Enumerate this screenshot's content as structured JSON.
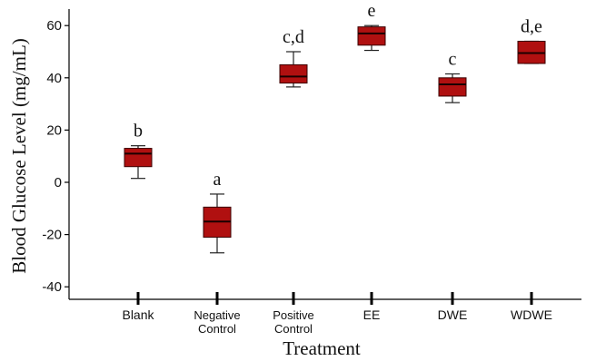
{
  "chart_data": {
    "type": "box",
    "title": "",
    "xlabel": "Treatment",
    "ylabel": "Blood Glucose Level (mg/mL)",
    "ylim": [
      -45,
      66
    ],
    "yticks": [
      -40,
      -20,
      0,
      20,
      40,
      60
    ],
    "grid": false,
    "legend": "none",
    "box_color": "#b01010",
    "box_edge_color": "#3a0000",
    "categories": [
      {
        "label": "Blank",
        "label_lines": [
          "Blank"
        ],
        "letter": "b",
        "min": 1.5,
        "q1": 6,
        "median": 11,
        "q3": 13,
        "max": 14
      },
      {
        "label": "Negative Control",
        "label_lines": [
          "Negative",
          "Control"
        ],
        "letter": "a",
        "min": -27,
        "q1": -21,
        "median": -15,
        "q3": -9.5,
        "max": -4.5
      },
      {
        "label": "Positive Control",
        "label_lines": [
          "Positive",
          "Control"
        ],
        "letter": "c,d",
        "min": 36.5,
        "q1": 38,
        "median": 40.5,
        "q3": 45,
        "max": 50
      },
      {
        "label": "EE",
        "label_lines": [
          "EE"
        ],
        "letter": "e",
        "min": 50.5,
        "q1": 52.5,
        "median": 57,
        "q3": 59.5,
        "max": 60
      },
      {
        "label": "DWE",
        "label_lines": [
          "DWE"
        ],
        "letter": "c",
        "min": 30.5,
        "q1": 33,
        "median": 37.5,
        "q3": 40,
        "max": 41.5
      },
      {
        "label": "WDWE",
        "label_lines": [
          "WDWE"
        ],
        "letter": "d,e",
        "min": 45.5,
        "q1": 45.5,
        "median": 49.5,
        "q3": 54,
        "max": 54
      }
    ]
  }
}
